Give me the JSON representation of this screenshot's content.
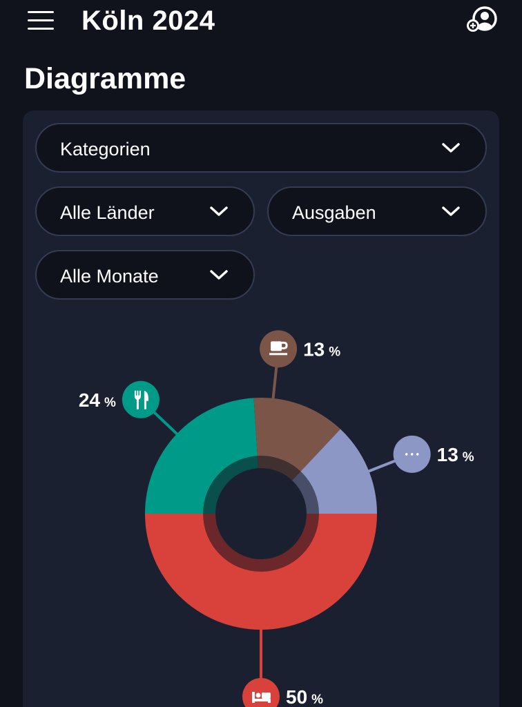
{
  "header": {
    "title": "Köln 2024",
    "menu_icon": "hamburger-menu-icon",
    "profile_icon": "add-person-icon"
  },
  "page": {
    "title": "Diagramme"
  },
  "filters": {
    "category": "Kategorien",
    "countries": "Alle Länder",
    "type": "Ausgaben",
    "months": "Alle Monate"
  },
  "chart_data": {
    "type": "pie",
    "variant": "donut",
    "title": "",
    "unit": "%",
    "slices": [
      {
        "name": "Unterkunft",
        "icon": "bed-icon",
        "value": 50,
        "label": "50",
        "color": "#d9423a"
      },
      {
        "name": "Essen",
        "icon": "cutlery-icon",
        "value": 24,
        "label": "24",
        "color": "#009a88"
      },
      {
        "name": "Kaffee",
        "icon": "coffee-cup-icon",
        "value": 13,
        "label": "13",
        "color": "#7a5548"
      },
      {
        "name": "Sonstiges",
        "icon": "more-dots-icon",
        "value": 13,
        "label": "13",
        "color": "#8d97c6"
      }
    ]
  },
  "colors": {
    "background": "#10131c",
    "card": "#1b2030",
    "select_bg": "#0f121b",
    "select_border": "#343b52"
  }
}
